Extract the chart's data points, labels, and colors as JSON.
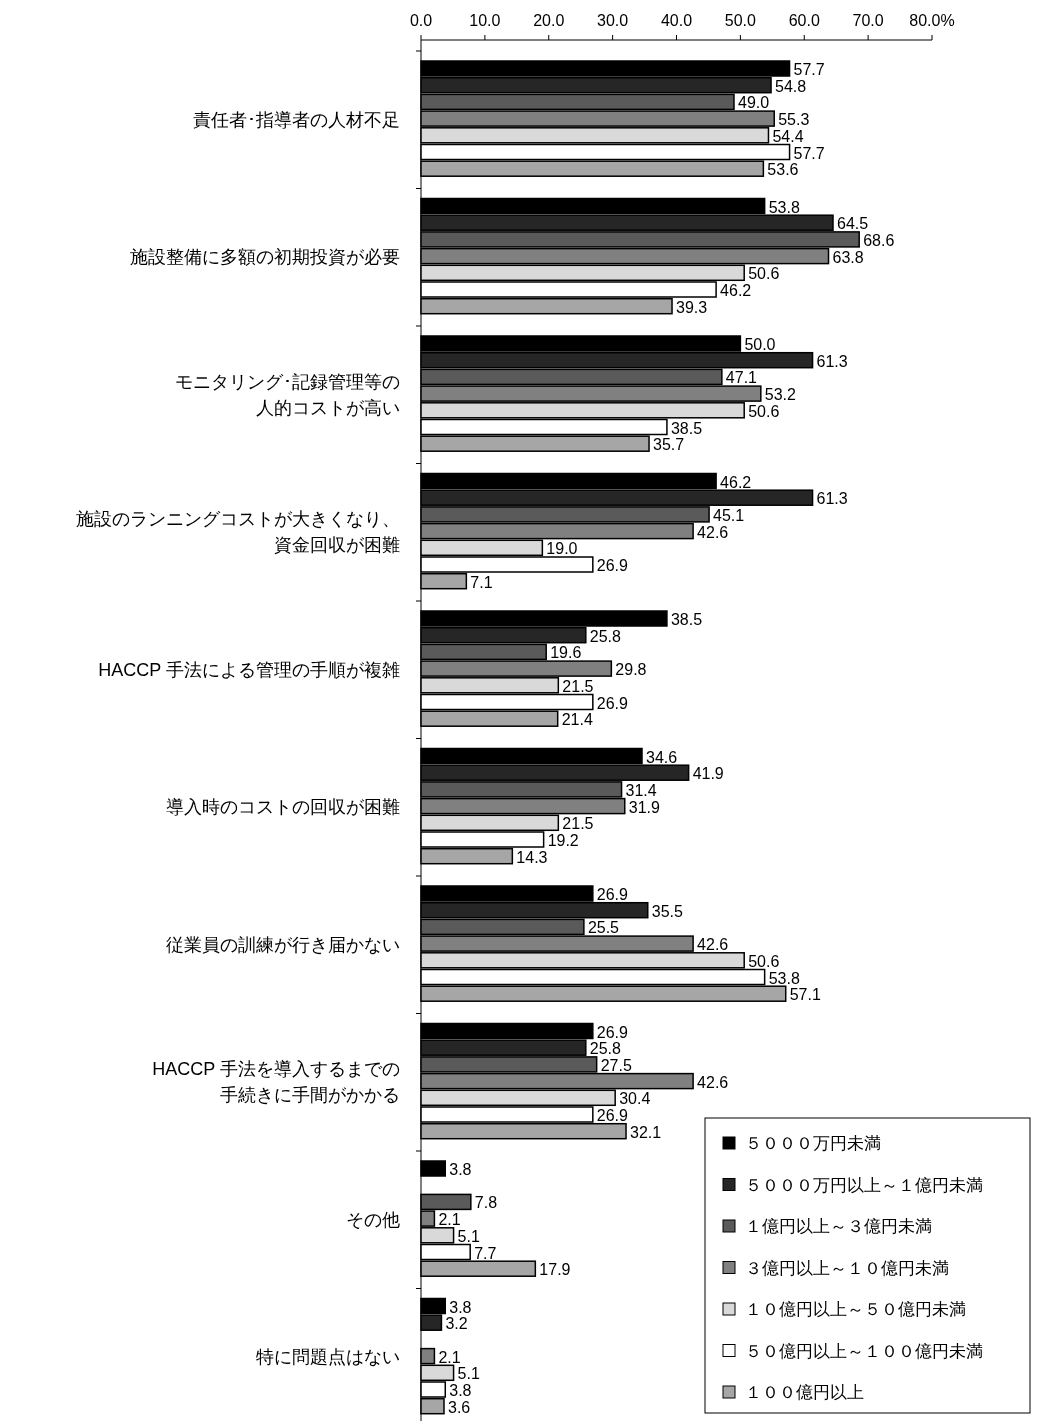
{
  "chart_data": {
    "type": "bar",
    "orientation": "horizontal",
    "categories": [
      "責任者･指導者の人材不足",
      "施設整備に多額の初期投資が必要",
      "モニタリング･記録管理等の人的コストが高い",
      "施設のランニングコストが大きくなり、資金回収が困難",
      "HACCP 手法による管理の手順が複雑",
      "導入時のコストの回収が困難",
      "従業員の訓練が行き届かない",
      "HACCP 手法を導入するまでの手続きに手間がかかる",
      "その他",
      "特に問題点はない"
    ],
    "xlim": [
      0,
      80
    ],
    "xticks": [
      {
        "value": 0,
        "label": "0.0"
      },
      {
        "value": 10,
        "label": "10.0"
      },
      {
        "value": 20,
        "label": "20.0"
      },
      {
        "value": 30,
        "label": "30.0"
      },
      {
        "value": 40,
        "label": "40.0"
      },
      {
        "value": 50,
        "label": "50.0"
      },
      {
        "value": 60,
        "label": "60.0"
      },
      {
        "value": 70,
        "label": "70.0"
      },
      {
        "value": 80,
        "label": "80.0%"
      }
    ],
    "grid": false,
    "legend": "bottom right",
    "series": [
      {
        "name": "５０００万円未満",
        "color": "#000000",
        "values": [
          57.7,
          53.8,
          50.0,
          46.2,
          38.5,
          34.6,
          26.9,
          26.9,
          3.8,
          3.8
        ],
        "value_labels": [
          "57.7",
          "53.8",
          "50.0",
          "46.2",
          "38.5",
          "34.6",
          "26.9",
          "26.9",
          "3.8",
          "3.8"
        ]
      },
      {
        "name": "５０００万円以上～１億円未満",
        "color": "#262626",
        "values": [
          54.8,
          64.5,
          61.3,
          61.3,
          25.8,
          41.9,
          35.5,
          25.8,
          null,
          3.2
        ],
        "value_labels": [
          "54.8",
          "64.5",
          "61.3",
          "61.3",
          "25.8",
          "41.9",
          "35.5",
          "25.8",
          null,
          "3.2"
        ]
      },
      {
        "name": "１億円以上～３億円未満",
        "color": "#5a5a5a",
        "values": [
          49.0,
          68.6,
          47.1,
          45.1,
          19.6,
          31.4,
          25.5,
          27.5,
          7.8,
          null
        ],
        "value_labels": [
          "49.0",
          "68.6",
          "47.1",
          "45.1",
          "19.6",
          "31.4",
          "25.5",
          "27.5",
          "7.8",
          null
        ]
      },
      {
        "name": "３億円以上～１０億円未満",
        "color": "#808080",
        "values": [
          55.3,
          63.8,
          53.2,
          42.6,
          29.8,
          31.9,
          42.6,
          42.6,
          2.1,
          2.1
        ],
        "value_labels": [
          "55.3",
          "63.8",
          "53.2",
          "42.6",
          "29.8",
          "31.9",
          "42.6",
          "42.6",
          "2.1",
          "2.1"
        ]
      },
      {
        "name": "１０億円以上～５０億円未満",
        "color": "#d9d9d9",
        "values": [
          54.4,
          50.6,
          50.6,
          19.0,
          21.5,
          21.5,
          50.6,
          30.4,
          5.1,
          5.1
        ],
        "value_labels": [
          "54.4",
          "50.6",
          "50.6",
          "19.0",
          "21.5",
          "21.5",
          "50.6",
          "30.4",
          "5.1",
          "5.1"
        ]
      },
      {
        "name": "５０億円以上～１００億円未満",
        "color": "#ffffff",
        "values": [
          57.7,
          46.2,
          38.5,
          26.9,
          26.9,
          19.2,
          53.8,
          26.9,
          7.7,
          3.8
        ],
        "value_labels": [
          "57.7",
          "46.2",
          "38.5",
          "26.9",
          "26.9",
          "19.2",
          "53.8",
          "26.9",
          "7.7",
          "3.8"
        ]
      },
      {
        "name": "１００億円以上",
        "color": "#a6a6a6",
        "values": [
          53.6,
          39.3,
          35.7,
          7.1,
          21.4,
          14.3,
          57.1,
          32.1,
          17.9,
          3.6
        ],
        "value_labels": [
          "53.6",
          "39.3",
          "35.7",
          "7.1",
          "21.4",
          "14.3",
          "57.1",
          "32.1",
          "17.9",
          "3.6"
        ]
      }
    ]
  }
}
